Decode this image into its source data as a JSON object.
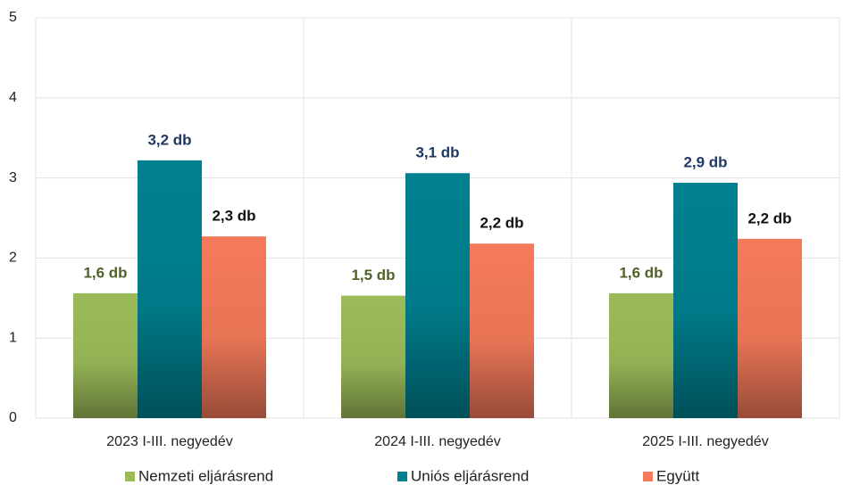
{
  "chart_data": {
    "type": "bar",
    "categories": [
      "2023 I-III. negyedév",
      "2024 I-III. negyedév",
      "2025 I-III. negyedév"
    ],
    "series": [
      {
        "name": "Nemzeti eljárásrend",
        "color": "#9bbb59",
        "label_color": "#4f6228",
        "values": [
          1.56,
          1.53,
          1.56
        ],
        "value_labels": [
          "1,6 db",
          "1,5 db",
          "1,6 db"
        ]
      },
      {
        "name": "Uniós eljárásrend",
        "color": "#00808f",
        "label_color": "#1f3864",
        "values": [
          3.22,
          3.06,
          2.94
        ],
        "value_labels": [
          "3,2 db",
          "3,1 db",
          "2,9 db"
        ]
      },
      {
        "name": "Együtt",
        "color": "#f47a5a",
        "label_color": "#111111",
        "values": [
          2.27,
          2.18,
          2.24
        ],
        "value_labels": [
          "2,3 db",
          "2,2 db",
          "2,2 db"
        ]
      }
    ],
    "ylim": [
      0,
      5
    ],
    "yticks": [
      0,
      1,
      2,
      3,
      4,
      5
    ],
    "grid": true,
    "legend": "bottom"
  }
}
